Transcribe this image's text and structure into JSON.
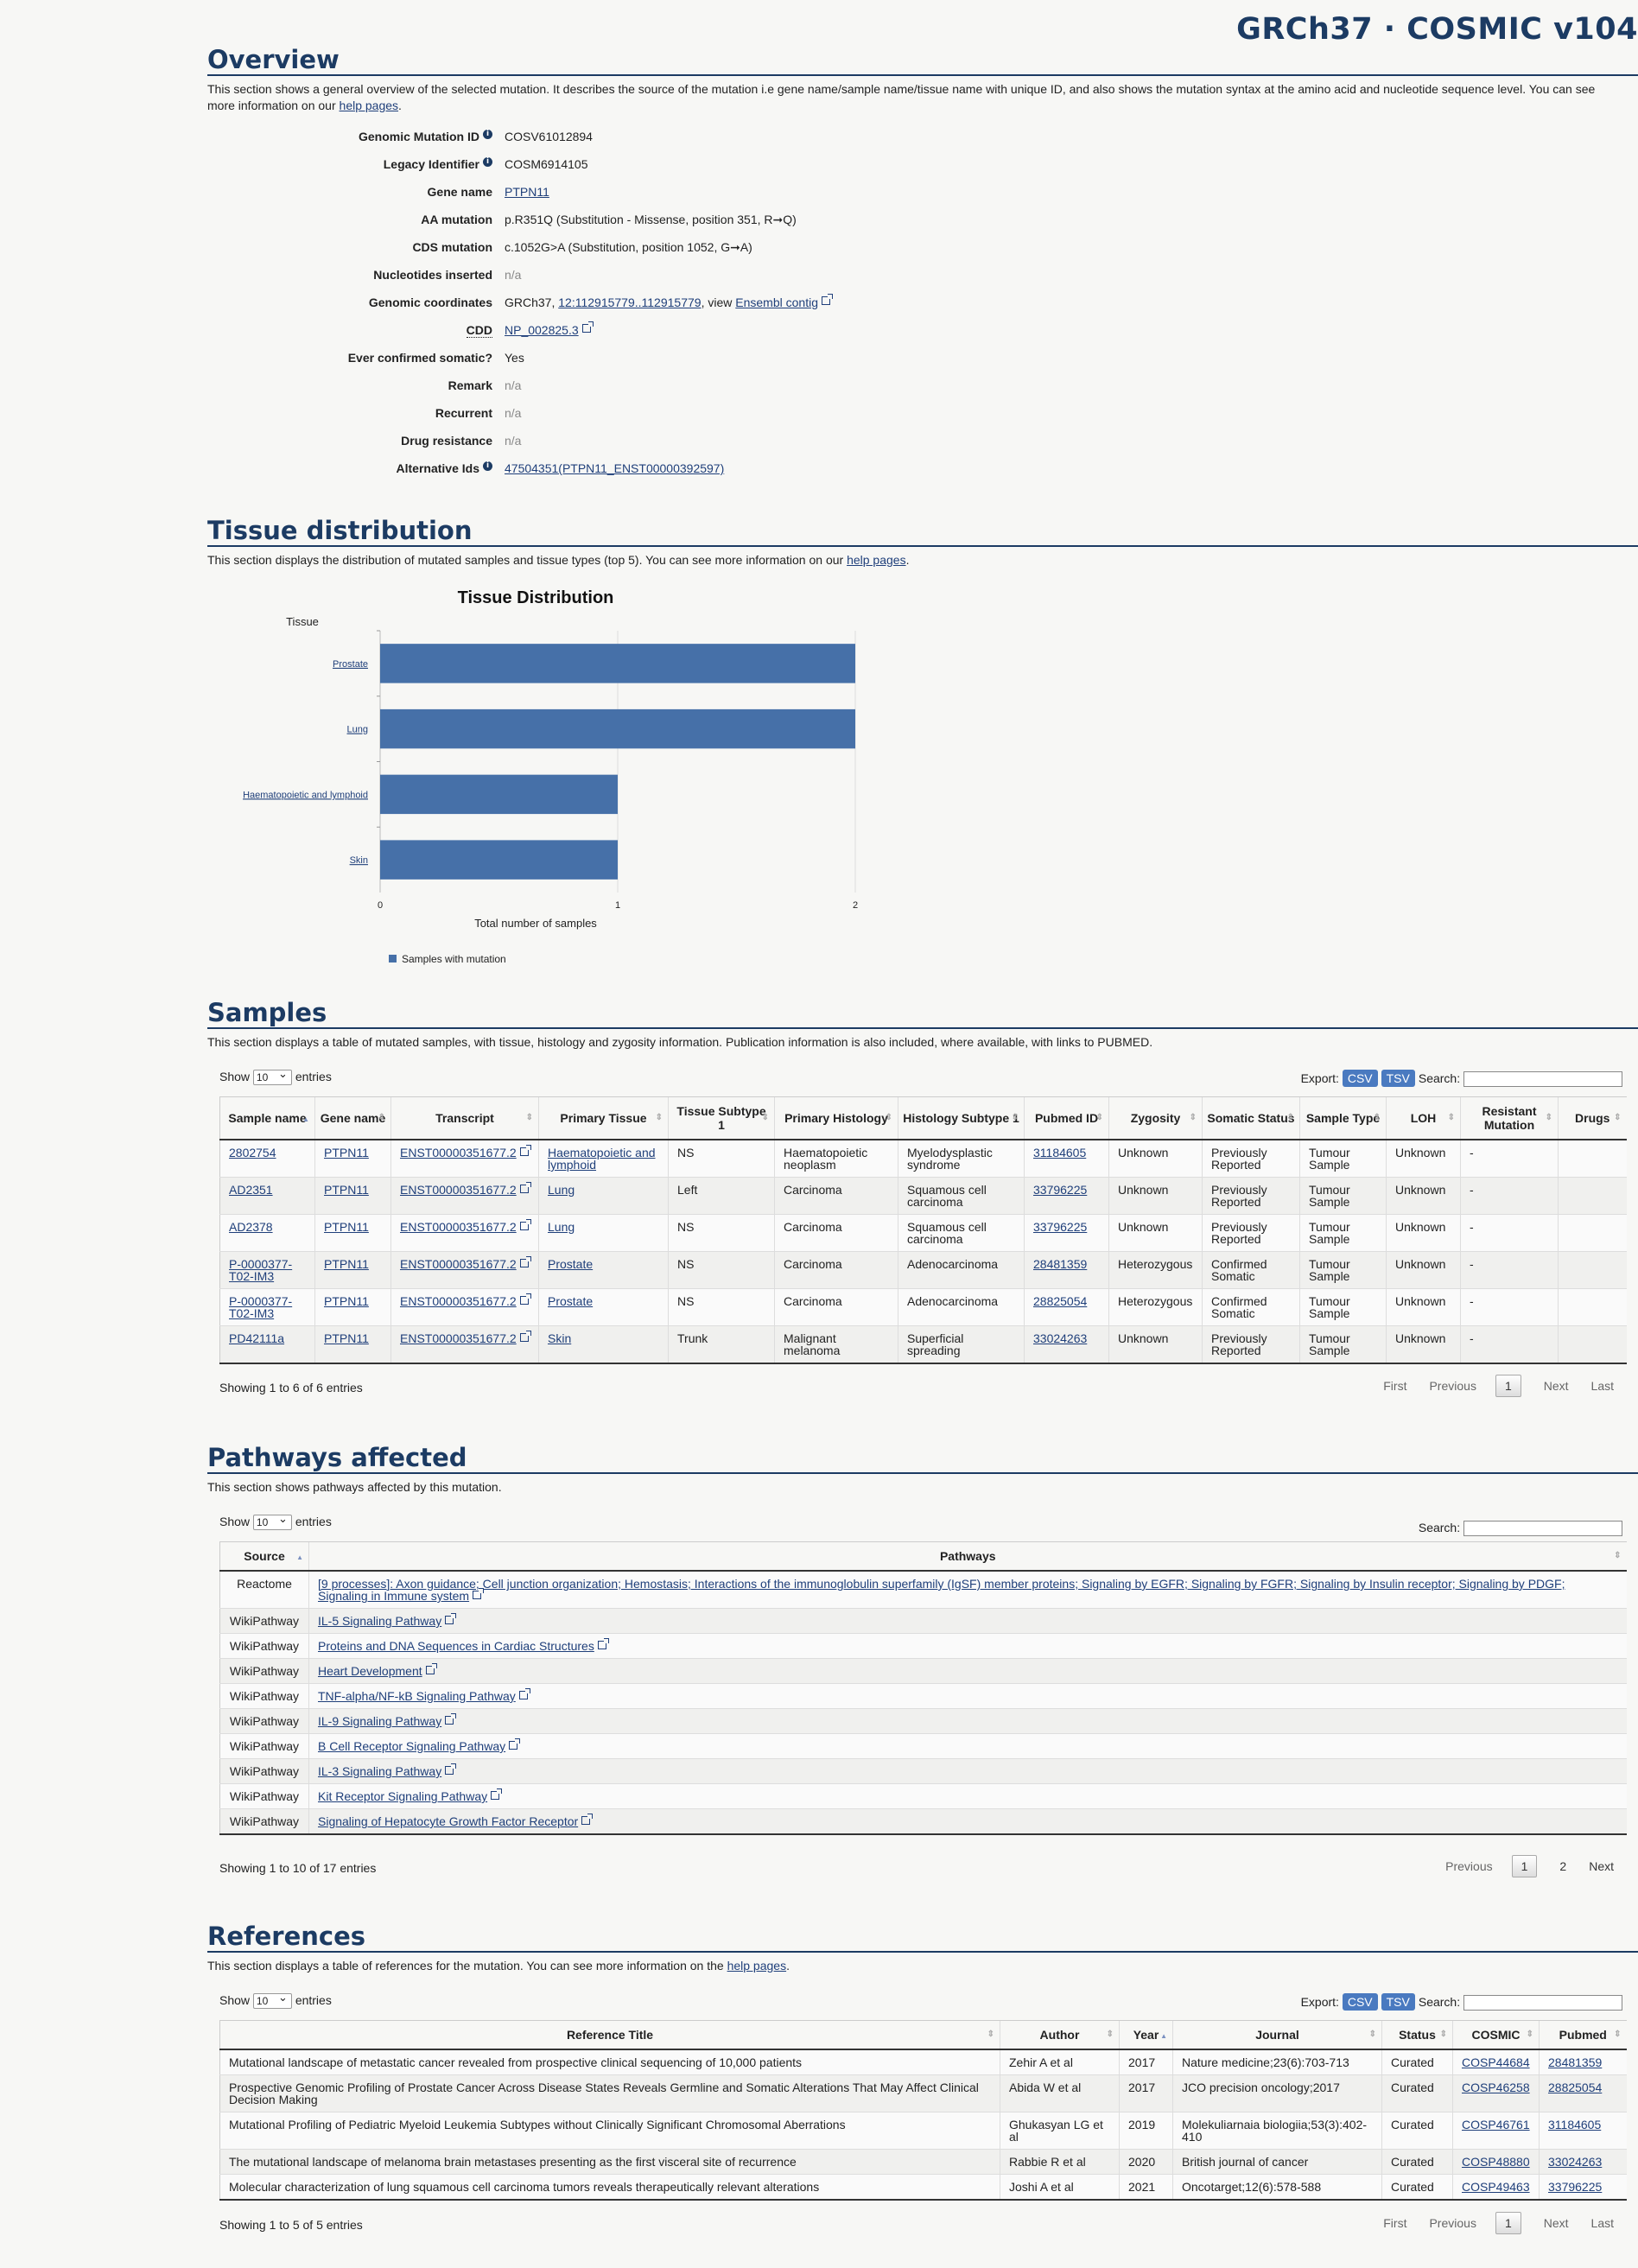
{
  "brand": "GRCh37 · COSMIC v104",
  "overview": {
    "title": "Overview",
    "desc": "This section shows a general overview of the selected mutation. It describes the source of the mutation i.e gene name/sample name/tissue name with unique ID, and also shows the mutation syntax at the amino acid and nucleotide sequence level. You can see more information on our",
    "help_link": "help pages",
    "fields": {
      "genomic_mutation_id_label": "Genomic Mutation ID",
      "genomic_mutation_id": "COSV61012894",
      "legacy_label": "Legacy Identifier",
      "legacy": "COSM6914105",
      "gene_label": "Gene name",
      "gene": "PTPN11",
      "aa_label": "AA mutation",
      "aa": "p.R351Q (Substitution - Missense, position 351, R➞Q)",
      "cds_label": "CDS mutation",
      "cds": "c.1052G>A (Substitution, position 1052, G➞A)",
      "nuc_label": "Nucleotides inserted",
      "nuc": "n/a",
      "coords_label": "Genomic coordinates",
      "coords_prefix": "GRCh37,",
      "coords_link": "12:112915779..112915779",
      "coords_mid": ", view",
      "coords_ensembl": "Ensembl contig",
      "cdd_label": "CDD",
      "cdd": "NP_002825.3",
      "ever_label": "Ever confirmed somatic?",
      "ever": "Yes",
      "remark_label": "Remark",
      "remark": "n/a",
      "recurrent_label": "Recurrent",
      "recurrent": "n/a",
      "drug_label": "Drug resistance",
      "drug": "n/a",
      "alt_label": "Alternative Ids",
      "alt": "47504351(PTPN11_ENST00000392597)"
    }
  },
  "tissue": {
    "title": "Tissue distribution",
    "desc": "This section displays the distribution of mutated samples and tissue types (top 5). You can see more information on our",
    "help_link": "help pages",
    "chart_title": "Tissue Distribution"
  },
  "chart_data": {
    "type": "bar",
    "orientation": "horizontal",
    "title": "Tissue Distribution",
    "ylabel": "Tissue",
    "xlabel": "Total number of samples",
    "categories": [
      "Prostate",
      "Lung",
      "Haematopoietic and lymphoid",
      "Skin"
    ],
    "series": [
      {
        "name": "Samples with mutation",
        "values": [
          2,
          2,
          1,
          1
        ]
      }
    ],
    "xlim": [
      0,
      2
    ],
    "ticks": [
      "0",
      "1",
      "2"
    ],
    "grid": true,
    "legend": "bottom-left",
    "color": "#4670a8"
  },
  "samples": {
    "title": "Samples",
    "desc": "This section displays a table of mutated samples, with tissue, histology and zygosity information. Publication information is also included, where available, with links to PUBMED.",
    "show": "Show",
    "entries_val": "10",
    "entries": "entries",
    "export": "Export:",
    "csv": "CSV",
    "tsv": "TSV",
    "search": "Search:",
    "headers": [
      "Sample name",
      "Gene name",
      "Transcript",
      "Primary Tissue",
      "Tissue Subtype 1",
      "Primary Histology",
      "Histology Subtype 1",
      "Pubmed ID",
      "Zygosity",
      "Somatic Status",
      "Sample Type",
      "LOH",
      "Resistant Mutation",
      "Drugs"
    ],
    "rows": [
      [
        "2802754",
        "PTPN11",
        "ENST00000351677.2",
        "Haematopoietic and lymphoid",
        "NS",
        "Haematopoietic neoplasm",
        "Myelodysplastic syndrome",
        "31184605",
        "Unknown",
        "Previously Reported",
        "Tumour Sample",
        "Unknown",
        "-",
        ""
      ],
      [
        "AD2351",
        "PTPN11",
        "ENST00000351677.2",
        "Lung",
        "Left",
        "Carcinoma",
        "Squamous cell carcinoma",
        "33796225",
        "Unknown",
        "Previously Reported",
        "Tumour Sample",
        "Unknown",
        "-",
        ""
      ],
      [
        "AD2378",
        "PTPN11",
        "ENST00000351677.2",
        "Lung",
        "NS",
        "Carcinoma",
        "Squamous cell carcinoma",
        "33796225",
        "Unknown",
        "Previously Reported",
        "Tumour Sample",
        "Unknown",
        "-",
        ""
      ],
      [
        "P-0000377-T02-IM3",
        "PTPN11",
        "ENST00000351677.2",
        "Prostate",
        "NS",
        "Carcinoma",
        "Adenocarcinoma",
        "28481359",
        "Heterozygous",
        "Confirmed Somatic",
        "Tumour Sample",
        "Unknown",
        "-",
        ""
      ],
      [
        "P-0000377-T02-IM3",
        "PTPN11",
        "ENST00000351677.2",
        "Prostate",
        "NS",
        "Carcinoma",
        "Adenocarcinoma",
        "28825054",
        "Heterozygous",
        "Confirmed Somatic",
        "Tumour Sample",
        "Unknown",
        "-",
        ""
      ],
      [
        "PD42111a",
        "PTPN11",
        "ENST00000351677.2",
        "Skin",
        "Trunk",
        "Malignant melanoma",
        "Superficial spreading",
        "33024263",
        "Unknown",
        "Previously Reported",
        "Tumour Sample",
        "Unknown",
        "-",
        ""
      ]
    ],
    "info": "Showing 1 to 6 of 6 entries",
    "pager": {
      "first": "First",
      "prev": "Previous",
      "page": "1",
      "next": "Next",
      "last": "Last"
    }
  },
  "pathways": {
    "title": "Pathways affected",
    "desc": "This section shows pathways affected by this mutation.",
    "headers": [
      "Source",
      "Pathways"
    ],
    "rows": [
      [
        "Reactome",
        "[9 processes]: Axon guidance; Cell junction organization; Hemostasis; Interactions of the immunoglobulin superfamily (IgSF) member proteins; Signaling by EGFR; Signaling by FGFR; Signaling by Insulin receptor; Signaling by PDGF; Signaling in Immune system"
      ],
      [
        "WikiPathway",
        "IL-5 Signaling Pathway"
      ],
      [
        "WikiPathway",
        "Proteins and DNA Sequences in Cardiac Structures"
      ],
      [
        "WikiPathway",
        "Heart Development"
      ],
      [
        "WikiPathway",
        "TNF-alpha/NF-kB Signaling Pathway"
      ],
      [
        "WikiPathway",
        "IL-9 Signaling Pathway"
      ],
      [
        "WikiPathway",
        "B Cell Receptor Signaling Pathway"
      ],
      [
        "WikiPathway",
        "IL-3 Signaling Pathway"
      ],
      [
        "WikiPathway",
        "Kit Receptor Signaling Pathway"
      ],
      [
        "WikiPathway",
        "Signaling of Hepatocyte Growth Factor Receptor"
      ]
    ],
    "info": "Showing 1 to 10 of 17 entries",
    "pager": {
      "prev": "Previous",
      "page": "1",
      "page2": "2",
      "next": "Next"
    }
  },
  "references": {
    "title": "References",
    "desc": "This section displays a table of references for the mutation. You can see more information on the",
    "help_link": "help pages",
    "headers": [
      "Reference Title",
      "Author",
      "Year",
      "Journal",
      "Status",
      "COSMIC",
      "Pubmed"
    ],
    "rows": [
      [
        "Mutational landscape of metastatic cancer revealed from prospective clinical sequencing of 10,000 patients",
        "Zehir A et al",
        "2017",
        "Nature medicine;23(6):703-713",
        "Curated",
        "COSP44684",
        "28481359"
      ],
      [
        "Prospective Genomic Profiling of Prostate Cancer Across Disease States Reveals Germline and Somatic Alterations That May Affect Clinical Decision Making",
        "Abida W et al",
        "2017",
        "JCO precision oncology;2017",
        "Curated",
        "COSP46258",
        "28825054"
      ],
      [
        "Mutational Profiling of Pediatric Myeloid Leukemia Subtypes without Clinically Significant Chromosomal Aberrations",
        "Ghukasyan LG et al",
        "2019",
        "Molekuliarnaia biologiia;53(3):402-410",
        "Curated",
        "COSP46761",
        "31184605"
      ],
      [
        "The mutational landscape of melanoma brain metastases presenting as the first visceral site of recurrence",
        "Rabbie R et al",
        "2020",
        "British journal of cancer",
        "Curated",
        "COSP48880",
        "33024263"
      ],
      [
        "Molecular characterization of lung squamous cell carcinoma tumors reveals therapeutically relevant alterations",
        "Joshi A et al",
        "2021",
        "Oncotarget;12(6):578-588",
        "Curated",
        "COSP49463",
        "33796225"
      ]
    ],
    "info": "Showing 1 to 5 of 5 entries",
    "pager": {
      "first": "First",
      "prev": "Previous",
      "page": "1",
      "next": "Next",
      "last": "Last"
    }
  }
}
